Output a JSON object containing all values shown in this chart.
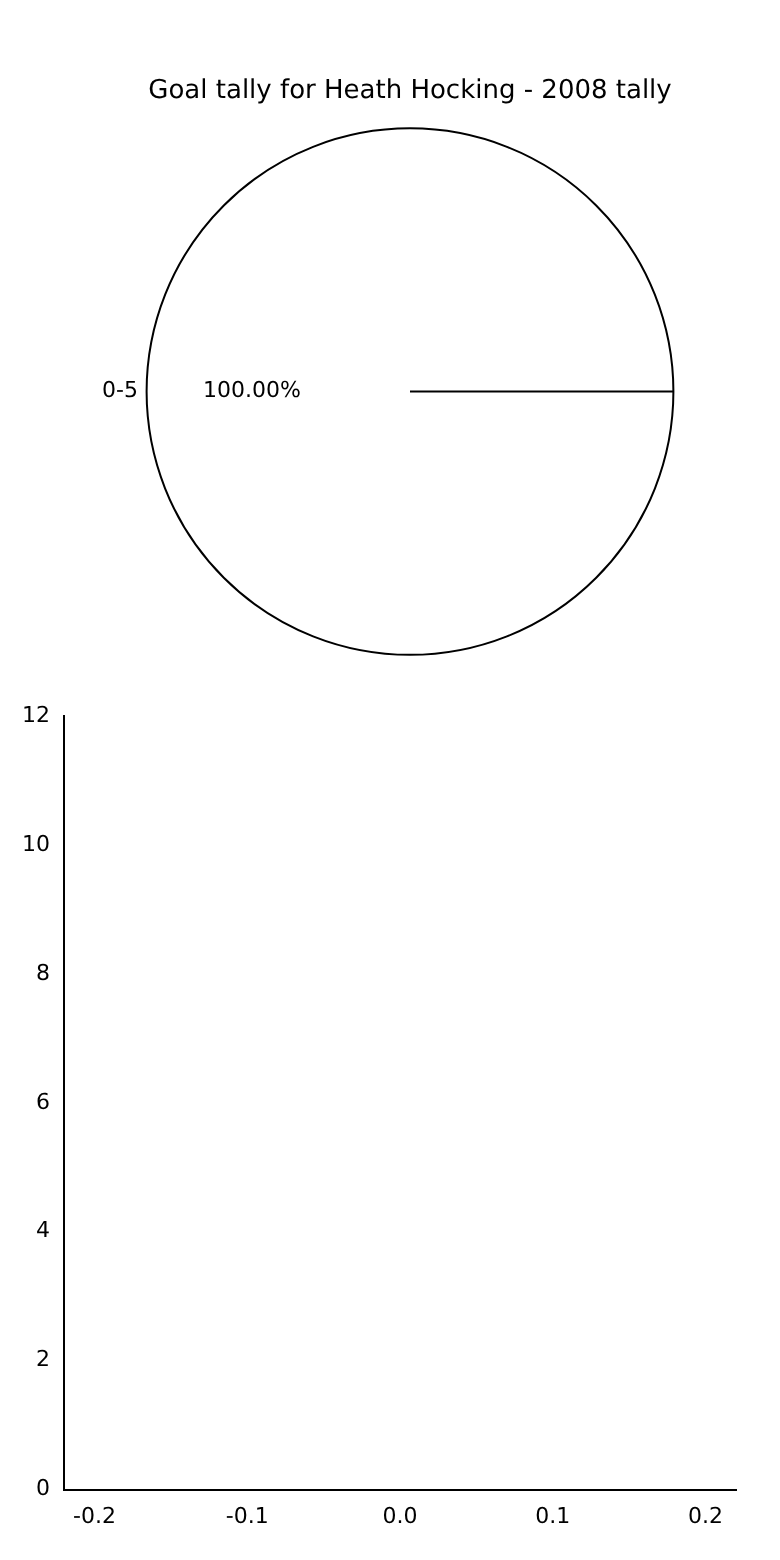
{
  "chart_data": [
    {
      "type": "pie",
      "title": "Goal tally for Heath Hocking - 2008 tally",
      "categories": [
        "0-5"
      ],
      "values": [
        100
      ],
      "colors": [
        "#ffffff"
      ],
      "value_labels": [
        "100.00%"
      ],
      "legend": false
    },
    {
      "type": "line",
      "xlim": [
        -0.22,
        0.22
      ],
      "xticks": [
        -0.2,
        -0.1,
        {
          "value": 0.0,
          "label": "0.0"
        },
        0.1,
        0.2
      ],
      "ylim": [
        0,
        12
      ],
      "yticks": [
        0,
        2,
        4,
        6,
        8,
        10,
        12
      ],
      "legend": false,
      "grid": false
    }
  ]
}
